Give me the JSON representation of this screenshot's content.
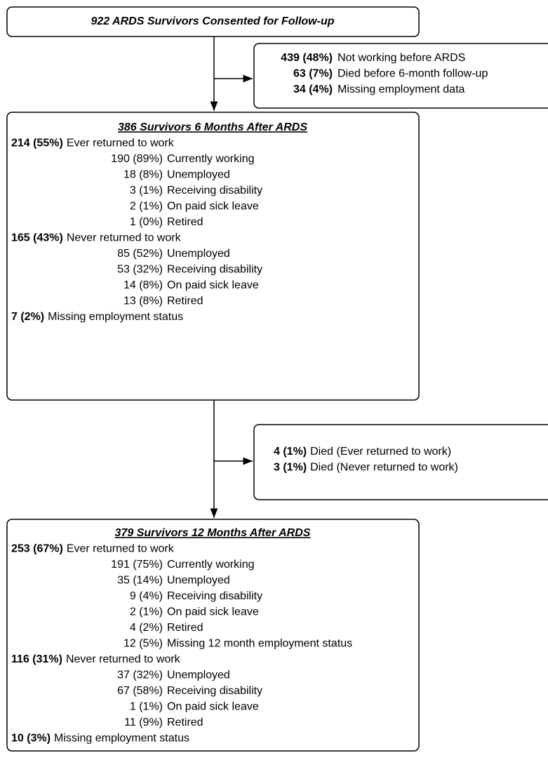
{
  "top": {
    "title": "922 ARDS Survivors Consented for Follow-up"
  },
  "exclusion_1": {
    "items": [
      {
        "count": "439 (48%)",
        "label": "Not working before ARDS"
      },
      {
        "count": "63 (7%)",
        "label": "Died before 6-month follow-up"
      },
      {
        "count": "34 (4%)",
        "label": "Missing employment data"
      }
    ]
  },
  "month_6": {
    "title": "386 Survivors 6 Months After ARDS",
    "groups": [
      {
        "count": "214 (55%)",
        "label": "Ever returned to work",
        "items": [
          {
            "count": "190 (89%)",
            "label": "Currently working"
          },
          {
            "count": "18 (8%)",
            "label": "Unemployed"
          },
          {
            "count": "3 (1%)",
            "label": "Receiving disability"
          },
          {
            "count": "2 (1%)",
            "label": "On paid sick leave"
          },
          {
            "count": "1 (0%)",
            "label": "Retired"
          }
        ]
      },
      {
        "count": "165 (43%)",
        "label": "Never returned to work",
        "items": [
          {
            "count": "85 (52%)",
            "label": "Unemployed"
          },
          {
            "count": "53 (32%)",
            "label": "Receiving disability"
          },
          {
            "count": "14 (8%)",
            "label": "On paid sick leave"
          },
          {
            "count": "13 (8%)",
            "label": "Retired"
          }
        ]
      },
      {
        "count": "7 (2%)",
        "label": "Missing employment status"
      }
    ]
  },
  "exclusion_2": {
    "items": [
      {
        "count": "4 (1%)",
        "label": "Died (Ever returned to work)"
      },
      {
        "count": "3 (1%)",
        "label": "Died (Never returned to work)"
      }
    ]
  },
  "month_12": {
    "title": "379 Survivors 12 Months After ARDS",
    "groups": [
      {
        "count": "253 (67%)",
        "label": "Ever returned to work",
        "items": [
          {
            "count": "191 (75%)",
            "label": "Currently working"
          },
          {
            "count": "35 (14%)",
            "label": "Unemployed"
          },
          {
            "count": "9 (4%)",
            "label": "Receiving disability"
          },
          {
            "count": "2 (1%)",
            "label": "On paid sick leave"
          },
          {
            "count": "4 (2%)",
            "label": "Retired"
          },
          {
            "count": "12 (5%)",
            "label": "Missing 12 month employment status"
          }
        ]
      },
      {
        "count": "116 (31%)",
        "label": "Never returned to work",
        "items": [
          {
            "count": "37 (32%)",
            "label": "Unemployed"
          },
          {
            "count": "67 (58%)",
            "label": "Receiving disability"
          },
          {
            "count": "1 (1%)",
            "label": "On paid sick leave"
          },
          {
            "count": "11 (9%)",
            "label": "Retired"
          }
        ]
      },
      {
        "count": "10 (3%)",
        "label": "Missing employment status"
      }
    ]
  }
}
